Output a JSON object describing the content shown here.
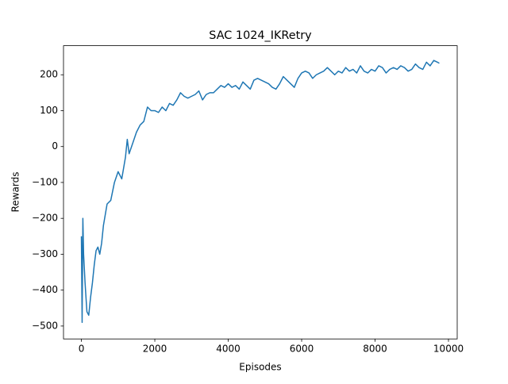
{
  "chart_data": {
    "type": "line",
    "title": "SAC 1024_IKRetry",
    "x_label": "Episodes",
    "y_label": "Rewards",
    "x": [
      0,
      20,
      40,
      60,
      100,
      150,
      200,
      250,
      300,
      350,
      400,
      450,
      500,
      550,
      600,
      700,
      800,
      900,
      1000,
      1100,
      1200,
      1250,
      1300,
      1400,
      1500,
      1600,
      1700,
      1800,
      1900,
      2000,
      2100,
      2200,
      2300,
      2400,
      2500,
      2600,
      2700,
      2800,
      2900,
      3000,
      3100,
      3200,
      3300,
      3400,
      3500,
      3600,
      3700,
      3800,
      3900,
      4000,
      4100,
      4200,
      4300,
      4400,
      4500,
      4600,
      4700,
      4800,
      4900,
      5000,
      5100,
      5200,
      5300,
      5400,
      5500,
      5600,
      5700,
      5800,
      5900,
      6000,
      6100,
      6200,
      6300,
      6400,
      6500,
      6600,
      6700,
      6800,
      6900,
      7000,
      7100,
      7200,
      7300,
      7400,
      7500,
      7600,
      7700,
      7800,
      7900,
      8000,
      8100,
      8200,
      8300,
      8400,
      8500,
      8600,
      8700,
      8800,
      8900,
      9000,
      9100,
      9200,
      9300,
      9400,
      9500,
      9600,
      9700,
      9750
    ],
    "series": [
      {
        "name": "Rewards",
        "color": "#1f77b4",
        "values": [
          -250,
          -490,
          -200,
          -300,
          -380,
          -460,
          -470,
          -420,
          -380,
          -330,
          -290,
          -280,
          -300,
          -270,
          -220,
          -160,
          -150,
          -100,
          -70,
          -90,
          -30,
          20,
          -20,
          10,
          40,
          60,
          70,
          110,
          100,
          100,
          95,
          110,
          100,
          120,
          115,
          130,
          150,
          140,
          135,
          140,
          145,
          155,
          130,
          145,
          150,
          150,
          160,
          170,
          165,
          175,
          165,
          170,
          160,
          180,
          170,
          160,
          185,
          190,
          185,
          180,
          175,
          165,
          160,
          175,
          195,
          185,
          175,
          165,
          190,
          205,
          210,
          205,
          190,
          200,
          205,
          210,
          220,
          210,
          200,
          210,
          205,
          220,
          210,
          215,
          205,
          225,
          210,
          205,
          215,
          210,
          225,
          220,
          205,
          215,
          220,
          215,
          225,
          220,
          210,
          215,
          230,
          220,
          215,
          235,
          225,
          240,
          235,
          232
        ]
      }
    ],
    "xlim": [
      -487.5,
      10237.5
    ],
    "ylim": [
      -536,
      281
    ],
    "xticks": [
      0,
      2000,
      4000,
      6000,
      8000,
      10000
    ],
    "yticks": [
      {
        "value": -500,
        "label": "−500"
      },
      {
        "value": -400,
        "label": "−400"
      },
      {
        "value": -300,
        "label": "−300"
      },
      {
        "value": -200,
        "label": "−200"
      },
      {
        "value": -100,
        "label": "−100"
      },
      0,
      100,
      200
    ],
    "grid": false
  }
}
